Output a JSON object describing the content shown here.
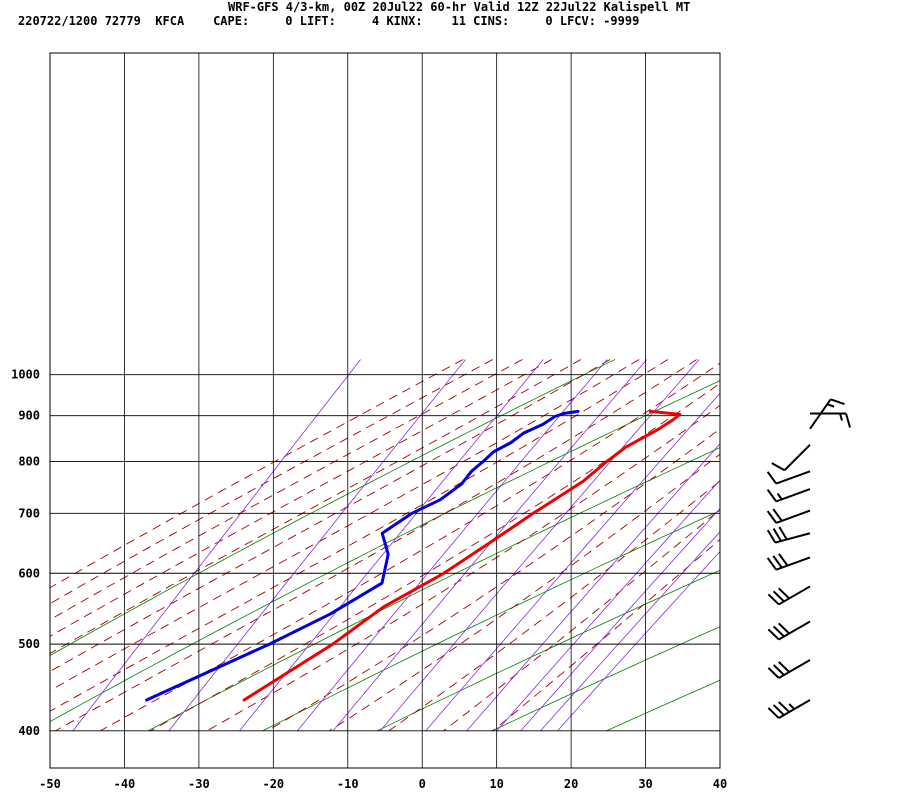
{
  "header": {
    "line1": "WRF-GFS 4/3-km, 00Z 20Jul22 60-hr Valid 12Z 22Jul22 Kalispell MT",
    "line2": "220722/1200 72779  KFCA    CAPE:     0 LIFT:     4 KINX:    11 CINS:     0 LFCV: -9999"
  },
  "colors": {
    "temperature": "#ee0000",
    "dewpoint": "#0000dd",
    "isotherm": "#000000",
    "dry_adiabat": "#008000",
    "moist_adiabat": "#aa0000",
    "mixing_ratio": "#8a2be2"
  },
  "chart_data": {
    "type": "line",
    "chart_kind": "skew-t log-p sounding",
    "xlabel": "",
    "ylabel": "",
    "x_ticks": [
      "-50",
      "-40",
      "-30",
      "-20",
      "-10",
      "0",
      "10",
      "20",
      "30",
      "40"
    ],
    "y_ticks": [
      "400",
      "500",
      "600",
      "700",
      "800",
      "900",
      "1000"
    ],
    "xlim": [
      -50,
      40
    ],
    "ylim_hpa": [
      1040,
      400
    ],
    "log_pressure": true,
    "grid": true,
    "series": [
      {
        "key": "temperature",
        "color": "#ee0000",
        "points": [
          {
            "p": 910,
            "t": 1.9
          },
          {
            "p": 903,
            "t": 6.1
          },
          {
            "p": 890,
            "t": 5.6
          },
          {
            "p": 870,
            "t": 4.5
          },
          {
            "p": 830,
            "t": 1.5
          },
          {
            "p": 800,
            "t": 0.1
          },
          {
            "p": 760,
            "t": -1.5
          },
          {
            "p": 700,
            "t": -5.6
          },
          {
            "p": 650,
            "t": -9.0
          },
          {
            "p": 600,
            "t": -12.8
          },
          {
            "p": 550,
            "t": -18.2
          },
          {
            "p": 500,
            "t": -22.0
          },
          {
            "p": 433,
            "t": -29.4
          }
        ]
      },
      {
        "key": "dewpoint",
        "color": "#0000dd",
        "points": [
          {
            "p": 910,
            "t": -7.8
          },
          {
            "p": 905,
            "t": -9.6
          },
          {
            "p": 898,
            "t": -10.5
          },
          {
            "p": 880,
            "t": -11.5
          },
          {
            "p": 860,
            "t": -13.4
          },
          {
            "p": 840,
            "t": -14.3
          },
          {
            "p": 820,
            "t": -15.9
          },
          {
            "p": 800,
            "t": -16.5
          },
          {
            "p": 780,
            "t": -17.3
          },
          {
            "p": 755,
            "t": -17.6
          },
          {
            "p": 725,
            "t": -19.2
          },
          {
            "p": 700,
            "t": -21.9
          },
          {
            "p": 665,
            "t": -24.3
          },
          {
            "p": 630,
            "t": -21.8
          },
          {
            "p": 585,
            "t": -20.3
          },
          {
            "p": 540,
            "t": -24.8
          },
          {
            "p": 500,
            "t": -30.5
          },
          {
            "p": 433,
            "t": -42.5
          }
        ]
      }
    ],
    "wind_barbs": [
      {
        "p": 433,
        "dir": 240,
        "kt": 35
      },
      {
        "p": 480,
        "dir": 240,
        "kt": 30
      },
      {
        "p": 530,
        "dir": 240,
        "kt": 30
      },
      {
        "p": 580,
        "dir": 240,
        "kt": 30
      },
      {
        "p": 625,
        "dir": 250,
        "kt": 30
      },
      {
        "p": 665,
        "dir": 255,
        "kt": 30
      },
      {
        "p": 705,
        "dir": 250,
        "kt": 20
      },
      {
        "p": 745,
        "dir": 250,
        "kt": 15
      },
      {
        "p": 780,
        "dir": 250,
        "kt": 10
      },
      {
        "p": 835,
        "dir": 225,
        "kt": 10
      },
      {
        "p": 870,
        "dir": 35,
        "kt": 15
      },
      {
        "p": 905,
        "dir": 90,
        "kt": 15
      }
    ]
  }
}
